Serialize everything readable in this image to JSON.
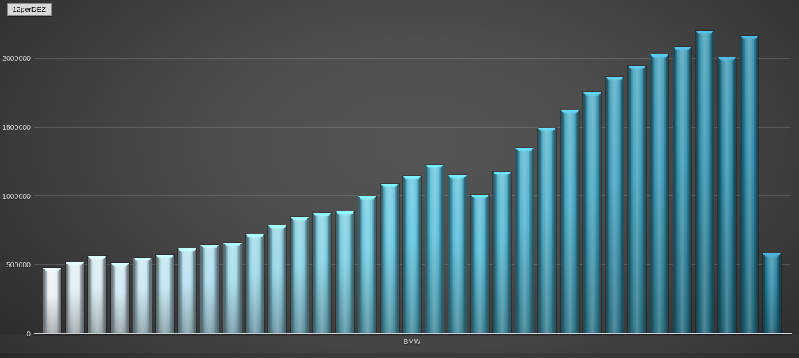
{
  "window": {
    "badge_label": "12perDEZ"
  },
  "x_axis": {
    "title": "BMW"
  },
  "y_axis": {
    "tick_values": [
      0,
      500000,
      1000000,
      1500000,
      2000000
    ]
  },
  "colors": {
    "bar_gradient_start": "#eaf1f5",
    "bar_gradient_mid": "#5ec3de",
    "bar_gradient_end": "#2b89a6",
    "axis_line": "#c7cacc",
    "tick_text": "#dcdcdc",
    "gridline": "rgba(255,255,255,0.15)",
    "badge_bg": "#d9d9d9",
    "badge_text": "#0a0a0a",
    "background_center": "#4e4e4e",
    "background_edge": "#262626"
  },
  "chart_data": {
    "type": "bar",
    "title": "12perDEZ",
    "xlabel": "BMW",
    "ylabel": "",
    "ylim": [
      0,
      2250000
    ],
    "yticks": [
      0,
      500000,
      1000000,
      1500000,
      2000000
    ],
    "grid": true,
    "legend_position": "top-left",
    "categories_visible": false,
    "bar_color_gradient": [
      "#eaf1f5",
      "#5ec3de",
      "#2b89a6"
    ],
    "series": [
      {
        "name": "12perDEZ",
        "values": [
          480000,
          520000,
          565000,
          515000,
          555000,
          575000,
          625000,
          650000,
          665000,
          725000,
          790000,
          850000,
          880000,
          890000,
          1000000,
          1095000,
          1150000,
          1230000,
          1155000,
          1015000,
          1180000,
          1350000,
          1500000,
          1625000,
          1755000,
          1870000,
          1950000,
          2030000,
          2085000,
          2205000,
          2010000,
          2165000,
          585000
        ]
      }
    ]
  }
}
